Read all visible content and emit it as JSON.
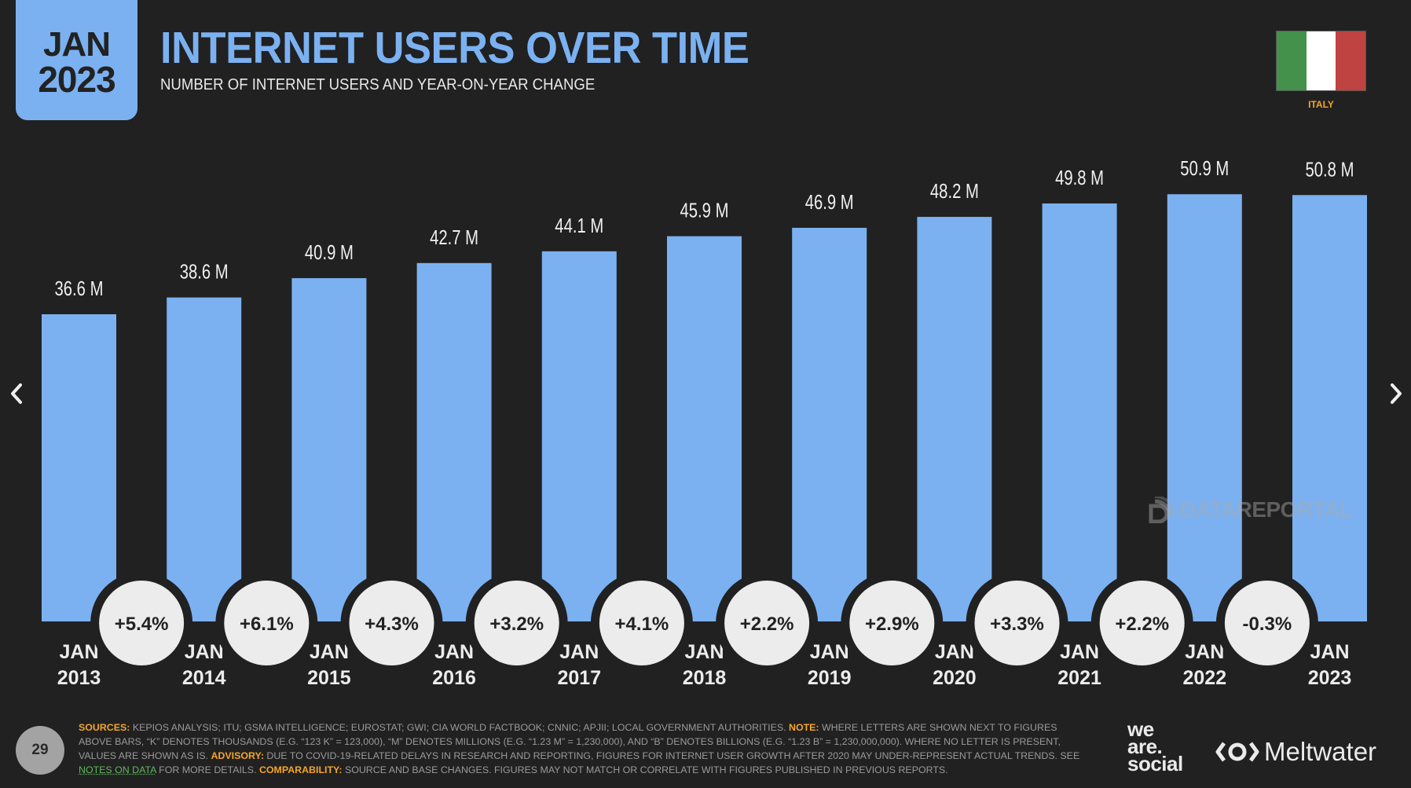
{
  "header": {
    "date_badge": {
      "month": "JAN",
      "year": "2023"
    },
    "title": "INTERNET USERS OVER TIME",
    "subtitle": "NUMBER OF INTERNET USERS AND YEAR-ON-YEAR CHANGE",
    "country": "ITALY",
    "flag_colors": [
      "#43914b",
      "#ffffff",
      "#bf4341"
    ]
  },
  "navigation": {
    "prev_icon": "chevron-left-icon",
    "next_icon": "chevron-right-icon"
  },
  "colors": {
    "bar": "#7bb1f1",
    "background": "#212121",
    "bubble": "#ececec",
    "accent": "#f4a52b",
    "link": "#5fb85e"
  },
  "chart_data": {
    "type": "bar",
    "title": "INTERNET USERS OVER TIME",
    "subtitle": "NUMBER OF INTERNET USERS AND YEAR-ON-YEAR CHANGE",
    "xlabel": "",
    "ylabel": "",
    "ylim": [
      0,
      52
    ],
    "grid": false,
    "unit": "M",
    "categories": [
      "JAN 2013",
      "JAN 2014",
      "JAN 2015",
      "JAN 2016",
      "JAN 2017",
      "JAN 2018",
      "JAN 2019",
      "JAN 2020",
      "JAN 2021",
      "JAN 2022",
      "JAN 2023"
    ],
    "category_lines": [
      [
        "JAN",
        "2013"
      ],
      [
        "JAN",
        "2014"
      ],
      [
        "JAN",
        "2015"
      ],
      [
        "JAN",
        "2016"
      ],
      [
        "JAN",
        "2017"
      ],
      [
        "JAN",
        "2018"
      ],
      [
        "JAN",
        "2019"
      ],
      [
        "JAN",
        "2020"
      ],
      [
        "JAN",
        "2021"
      ],
      [
        "JAN",
        "2022"
      ],
      [
        "JAN",
        "2023"
      ]
    ],
    "values": [
      36.6,
      38.6,
      40.9,
      42.7,
      44.1,
      45.9,
      46.9,
      48.2,
      49.8,
      50.9,
      50.8
    ],
    "value_labels": [
      "36.6 M",
      "38.6 M",
      "40.9 M",
      "42.7 M",
      "44.1 M",
      "45.9 M",
      "46.9 M",
      "48.2 M",
      "49.8 M",
      "50.9 M",
      "50.8 M"
    ],
    "yoy_change": [
      "+5.4%",
      "+6.1%",
      "+4.3%",
      "+3.2%",
      "+4.1%",
      "+2.2%",
      "+2.9%",
      "+3.3%",
      "+2.2%",
      "-0.3%"
    ]
  },
  "watermark": "DATAREPORTAL",
  "footer": {
    "page_number": "29",
    "segments": [
      {
        "type": "key",
        "text": "SOURCES:"
      },
      {
        "type": "text",
        "text": " KEPIOS ANALYSIS; ITU; GSMA INTELLIGENCE; EUROSTAT; GWI; CIA WORLD FACTBOOK; CNNIC; APJII; LOCAL GOVERNMENT AUTHORITIES. "
      },
      {
        "type": "key",
        "text": "NOTE:"
      },
      {
        "type": "text",
        "text": " WHERE LETTERS ARE SHOWN NEXT TO FIGURES ABOVE BARS, “K” DENOTES THOUSANDS (E.G. “123 K” = 123,000), “M” DENOTES MILLIONS (E.G. “1.23 M” = 1,230,000), AND “B” DENOTES BILLIONS (E.G. “1.23 B” = 1,230,000,000). WHERE NO LETTER IS PRESENT, VALUES ARE SHOWN AS IS. "
      },
      {
        "type": "key",
        "text": "ADVISORY:"
      },
      {
        "type": "text",
        "text": " DUE TO COVID-19-RELATED DELAYS IN RESEARCH AND REPORTING, FIGURES FOR INTERNET USER GROWTH AFTER 2020 MAY UNDER-REPRESENT ACTUAL TRENDS. SEE "
      },
      {
        "type": "link",
        "text": "NOTES ON DATA"
      },
      {
        "type": "text",
        "text": " FOR MORE DETAILS. "
      },
      {
        "type": "key",
        "text": "COMPARABILITY:"
      },
      {
        "type": "text",
        "text": " SOURCE AND BASE CHANGES. FIGURES MAY NOT MATCH OR CORRELATE WITH FIGURES PUBLISHED IN PREVIOUS REPORTS."
      }
    ],
    "logos": {
      "we_are_social": [
        "we",
        "are.",
        "social"
      ],
      "meltwater": "Meltwater"
    }
  }
}
